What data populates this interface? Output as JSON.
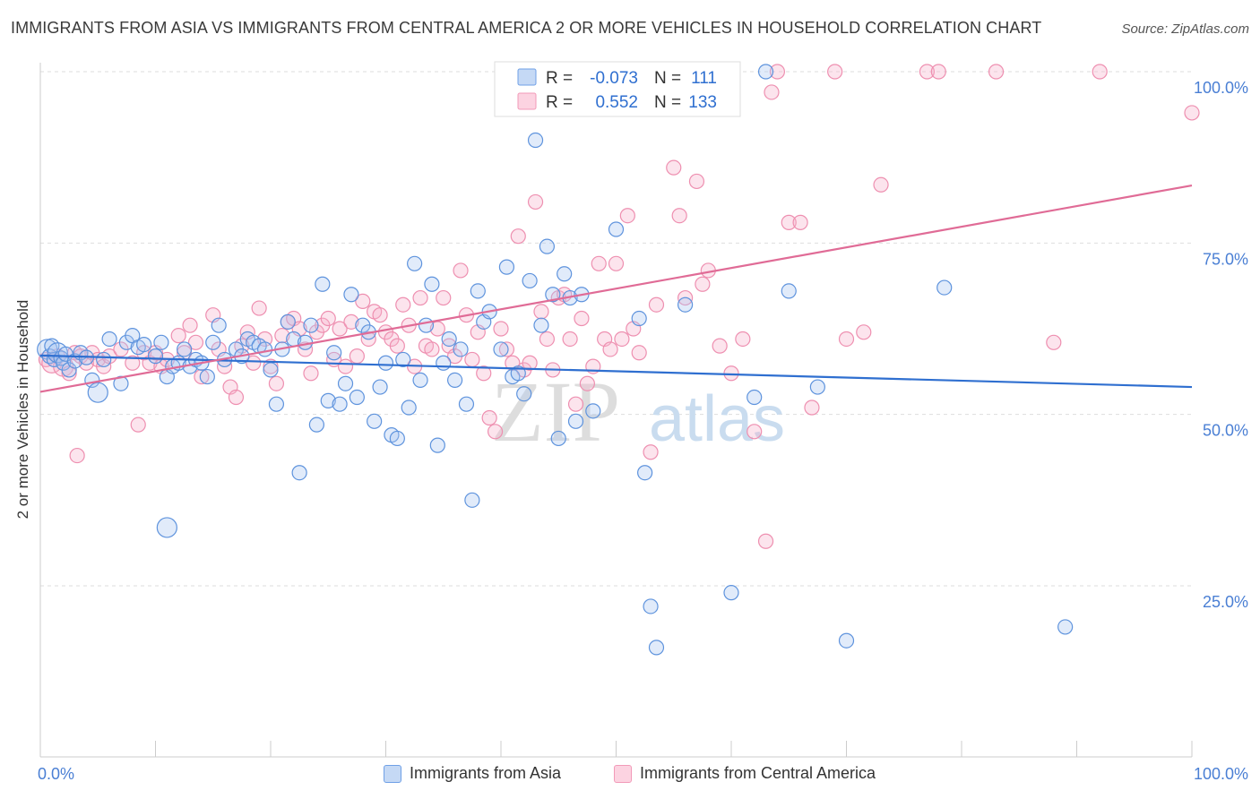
{
  "header": {
    "title": "IMMIGRANTS FROM ASIA VS IMMIGRANTS FROM CENTRAL AMERICA 2 OR MORE VEHICLES IN HOUSEHOLD CORRELATION CHART",
    "source": "Source: ZipAtlas.com"
  },
  "watermark": {
    "zip": "ZIP",
    "atlas": "atlas"
  },
  "chart_data": {
    "type": "scatter",
    "title": "IMMIGRANTS FROM ASIA VS IMMIGRANTS FROM CENTRAL AMERICA 2 OR MORE VEHICLES IN HOUSEHOLD CORRELATION CHART",
    "xlabel": "",
    "ylabel": "2 or more Vehicles in Household",
    "xlim": [
      0,
      100
    ],
    "ylim": [
      0,
      102
    ],
    "x_tick_labels": [
      "0.0%",
      "100.0%"
    ],
    "y_ticks": [
      25,
      50,
      75,
      100
    ],
    "y_tick_labels": [
      "25.0%",
      "50.0%",
      "75.0%",
      "100.0%"
    ],
    "grid": "horizontal dashed",
    "legend_position": "top-center",
    "legend": {
      "r_label": "R =",
      "n_label": "N =",
      "entries": [
        {
          "r_value": "-0.073",
          "n_value": "111"
        },
        {
          "r_value": "0.552",
          "n_value": "133"
        }
      ]
    },
    "series": [
      {
        "name": "Immigrants from Asia",
        "color": "#6fa0e6",
        "line_color": "#2f6fd0",
        "trend": {
          "x": [
            0,
            100
          ],
          "y": [
            58.6,
            54.0
          ]
        },
        "points": [
          [
            0.6,
            59.5
          ],
          [
            0.8,
            58.5
          ],
          [
            1.0,
            60.0
          ],
          [
            1.2,
            58.0
          ],
          [
            1.5,
            59.0
          ],
          [
            1.8,
            58.2
          ],
          [
            2.0,
            57.5
          ],
          [
            2.2,
            58.8
          ],
          [
            2.5,
            56.5
          ],
          [
            3.0,
            57.8
          ],
          [
            3.5,
            59.0
          ],
          [
            4.0,
            58.3
          ],
          [
            4.5,
            55.0
          ],
          [
            5.0,
            53.2
          ],
          [
            5.5,
            58.0
          ],
          [
            6.0,
            61.0
          ],
          [
            7.0,
            54.5
          ],
          [
            7.5,
            60.5
          ],
          [
            8.0,
            61.5
          ],
          [
            8.5,
            59.8
          ],
          [
            9.0,
            60.2
          ],
          [
            10.0,
            58.5
          ],
          [
            10.5,
            60.5
          ],
          [
            11.0,
            55.5
          ],
          [
            11.5,
            57.0
          ],
          [
            12.0,
            57.5
          ],
          [
            12.5,
            59.5
          ],
          [
            13.0,
            57.0
          ],
          [
            13.5,
            58.0
          ],
          [
            14.0,
            57.5
          ],
          [
            14.5,
            55.5
          ],
          [
            15.0,
            60.5
          ],
          [
            15.5,
            63.0
          ],
          [
            16.0,
            58.0
          ],
          [
            17.0,
            59.5
          ],
          [
            17.5,
            58.5
          ],
          [
            18.0,
            61.0
          ],
          [
            18.5,
            60.5
          ],
          [
            19.0,
            60.0
          ],
          [
            19.5,
            59.5
          ],
          [
            20.0,
            56.5
          ],
          [
            20.5,
            51.5
          ],
          [
            21.0,
            59.5
          ],
          [
            21.5,
            63.5
          ],
          [
            22.0,
            61.0
          ],
          [
            22.5,
            41.5
          ],
          [
            23.0,
            60.5
          ],
          [
            23.5,
            63.0
          ],
          [
            24.0,
            48.5
          ],
          [
            24.5,
            69.0
          ],
          [
            25.0,
            52.0
          ],
          [
            25.5,
            59.0
          ],
          [
            26.0,
            51.5
          ],
          [
            26.5,
            54.5
          ],
          [
            27.0,
            67.5
          ],
          [
            27.5,
            52.5
          ],
          [
            28.0,
            63.0
          ],
          [
            28.5,
            62.0
          ],
          [
            29.0,
            49.0
          ],
          [
            29.5,
            54.0
          ],
          [
            30.0,
            57.5
          ],
          [
            30.5,
            47.0
          ],
          [
            31.0,
            46.5
          ],
          [
            31.5,
            58.0
          ],
          [
            32.0,
            51.0
          ],
          [
            32.5,
            72.0
          ],
          [
            33.0,
            55.0
          ],
          [
            33.5,
            63.0
          ],
          [
            34.0,
            69.0
          ],
          [
            34.5,
            45.5
          ],
          [
            35.0,
            57.5
          ],
          [
            35.5,
            61.0
          ],
          [
            36.0,
            55.0
          ],
          [
            36.5,
            59.5
          ],
          [
            37.0,
            51.5
          ],
          [
            37.5,
            37.5
          ],
          [
            38.0,
            68.0
          ],
          [
            38.5,
            63.5
          ],
          [
            39.0,
            65.0
          ],
          [
            40.0,
            59.5
          ],
          [
            40.5,
            71.5
          ],
          [
            41.0,
            55.5
          ],
          [
            41.5,
            56.0
          ],
          [
            42.0,
            53.0
          ],
          [
            42.5,
            69.5
          ],
          [
            43.0,
            90.0
          ],
          [
            43.5,
            63.0
          ],
          [
            44.0,
            74.5
          ],
          [
            44.5,
            67.5
          ],
          [
            45.0,
            46.5
          ],
          [
            45.5,
            70.5
          ],
          [
            46.0,
            67.0
          ],
          [
            46.5,
            49.0
          ],
          [
            47.0,
            67.5
          ],
          [
            48.0,
            50.5
          ],
          [
            50.0,
            77.0
          ],
          [
            52.0,
            64.0
          ],
          [
            52.5,
            41.5
          ],
          [
            53.0,
            22.0
          ],
          [
            53.5,
            16.0
          ],
          [
            56.0,
            66.0
          ],
          [
            60.0,
            24.0
          ],
          [
            62.0,
            52.5
          ],
          [
            63.0,
            100.0
          ],
          [
            65.0,
            68.0
          ],
          [
            67.5,
            54.0
          ],
          [
            70.0,
            17.0
          ],
          [
            78.5,
            68.5
          ],
          [
            89.0,
            19.0
          ],
          [
            11.0,
            33.5
          ]
        ],
        "sizes": {
          "large": [
            [
              0.6,
              59.5
            ],
            [
              1.5,
              59.0
            ],
            [
              5.0,
              53.2
            ],
            [
              11.0,
              33.5
            ]
          ]
        }
      },
      {
        "name": "Immigrants from Central America",
        "color": "#f29ab8",
        "line_color": "#e06b96",
        "trend": {
          "x": [
            0,
            100
          ],
          "y": [
            53.3,
            83.4
          ]
        },
        "points": [
          [
            0.5,
            58.0
          ],
          [
            1.0,
            57.5
          ],
          [
            1.5,
            58.5
          ],
          [
            2.0,
            57.0
          ],
          [
            2.5,
            56.0
          ],
          [
            3.0,
            59.0
          ],
          [
            3.5,
            58.5
          ],
          [
            3.2,
            44.0
          ],
          [
            4.0,
            57.5
          ],
          [
            4.5,
            59.0
          ],
          [
            5.0,
            58.0
          ],
          [
            5.5,
            57.0
          ],
          [
            6.0,
            58.5
          ],
          [
            7.0,
            59.5
          ],
          [
            8.0,
            57.5
          ],
          [
            8.5,
            48.5
          ],
          [
            9.0,
            59.0
          ],
          [
            9.5,
            57.5
          ],
          [
            10.0,
            59.0
          ],
          [
            10.5,
            57.0
          ],
          [
            11.0,
            58.0
          ],
          [
            12.0,
            61.5
          ],
          [
            12.5,
            59.0
          ],
          [
            13.0,
            63.0
          ],
          [
            13.5,
            60.5
          ],
          [
            14.0,
            55.5
          ],
          [
            15.0,
            64.5
          ],
          [
            15.5,
            59.5
          ],
          [
            16.0,
            57.0
          ],
          [
            16.5,
            54.0
          ],
          [
            17.0,
            52.5
          ],
          [
            17.5,
            60.0
          ],
          [
            18.0,
            62.0
          ],
          [
            18.5,
            57.5
          ],
          [
            19.0,
            65.5
          ],
          [
            19.5,
            61.0
          ],
          [
            20.0,
            57.0
          ],
          [
            20.5,
            54.5
          ],
          [
            21.0,
            61.5
          ],
          [
            21.5,
            63.5
          ],
          [
            22.0,
            64.0
          ],
          [
            22.5,
            62.5
          ],
          [
            23.0,
            59.5
          ],
          [
            23.5,
            56.0
          ],
          [
            24.0,
            62.0
          ],
          [
            24.5,
            63.0
          ],
          [
            25.0,
            64.0
          ],
          [
            25.5,
            58.0
          ],
          [
            26.0,
            62.5
          ],
          [
            26.5,
            57.0
          ],
          [
            27.0,
            63.5
          ],
          [
            27.5,
            58.5
          ],
          [
            28.0,
            66.5
          ],
          [
            28.5,
            61.0
          ],
          [
            29.0,
            65.0
          ],
          [
            29.5,
            64.5
          ],
          [
            30.0,
            62.0
          ],
          [
            30.5,
            61.0
          ],
          [
            31.0,
            60.0
          ],
          [
            31.5,
            66.0
          ],
          [
            32.0,
            63.0
          ],
          [
            32.5,
            57.0
          ],
          [
            33.0,
            67.0
          ],
          [
            33.5,
            60.0
          ],
          [
            34.0,
            59.5
          ],
          [
            34.5,
            62.5
          ],
          [
            35.0,
            67.0
          ],
          [
            35.5,
            60.0
          ],
          [
            36.0,
            58.5
          ],
          [
            36.5,
            71.0
          ],
          [
            37.0,
            64.5
          ],
          [
            37.5,
            58.0
          ],
          [
            38.0,
            62.0
          ],
          [
            38.5,
            56.0
          ],
          [
            39.0,
            49.5
          ],
          [
            39.5,
            47.5
          ],
          [
            40.0,
            62.5
          ],
          [
            40.5,
            59.5
          ],
          [
            41.0,
            57.5
          ],
          [
            41.5,
            76.0
          ],
          [
            42.0,
            56.5
          ],
          [
            42.5,
            57.5
          ],
          [
            43.0,
            81.0
          ],
          [
            43.5,
            65.0
          ],
          [
            44.0,
            61.0
          ],
          [
            44.5,
            56.5
          ],
          [
            45.0,
            67.0
          ],
          [
            45.5,
            67.5
          ],
          [
            46.0,
            61.0
          ],
          [
            46.5,
            51.5
          ],
          [
            47.0,
            64.0
          ],
          [
            47.5,
            54.5
          ],
          [
            48.0,
            57.0
          ],
          [
            48.5,
            72.0
          ],
          [
            49.0,
            61.0
          ],
          [
            49.5,
            59.5
          ],
          [
            50.0,
            72.0
          ],
          [
            50.5,
            61.0
          ],
          [
            51.0,
            79.0
          ],
          [
            51.5,
            62.5
          ],
          [
            52.0,
            59.0
          ],
          [
            53.5,
            66.0
          ],
          [
            55.0,
            86.0
          ],
          [
            56.0,
            67.0
          ],
          [
            57.0,
            84.0
          ],
          [
            57.5,
            69.0
          ],
          [
            58.0,
            71.0
          ],
          [
            59.0,
            60.0
          ],
          [
            60.0,
            56.0
          ],
          [
            61.0,
            61.0
          ],
          [
            62.0,
            47.5
          ],
          [
            63.0,
            31.5
          ],
          [
            63.5,
            97.0
          ],
          [
            64.0,
            100.0
          ],
          [
            65.0,
            78.0
          ],
          [
            66.0,
            78.0
          ],
          [
            67.0,
            51.0
          ],
          [
            69.0,
            100.0
          ],
          [
            70.0,
            61.0
          ],
          [
            71.5,
            62.0
          ],
          [
            73.0,
            83.5
          ],
          [
            77.0,
            100.0
          ],
          [
            78.0,
            100.0
          ],
          [
            83.0,
            100.0
          ],
          [
            88.0,
            60.5
          ],
          [
            92.0,
            100.0
          ],
          [
            100.0,
            94.0
          ],
          [
            53.0,
            44.5
          ],
          [
            55.5,
            79.0
          ],
          [
            58.5,
            100.0
          ]
        ],
        "sizes": {
          "large": [
            [
              1.0,
              57.5
            ],
            [
              2.0,
              57.0
            ]
          ]
        }
      }
    ]
  },
  "bottom_legend": {
    "asia": {
      "label": "Immigrants from Asia",
      "fill": "#c5d9f5",
      "stroke": "#6fa0e6"
    },
    "central_america": {
      "label": "Immigrants from Central America",
      "fill": "#fcd3e1",
      "stroke": "#f29ab8"
    }
  }
}
